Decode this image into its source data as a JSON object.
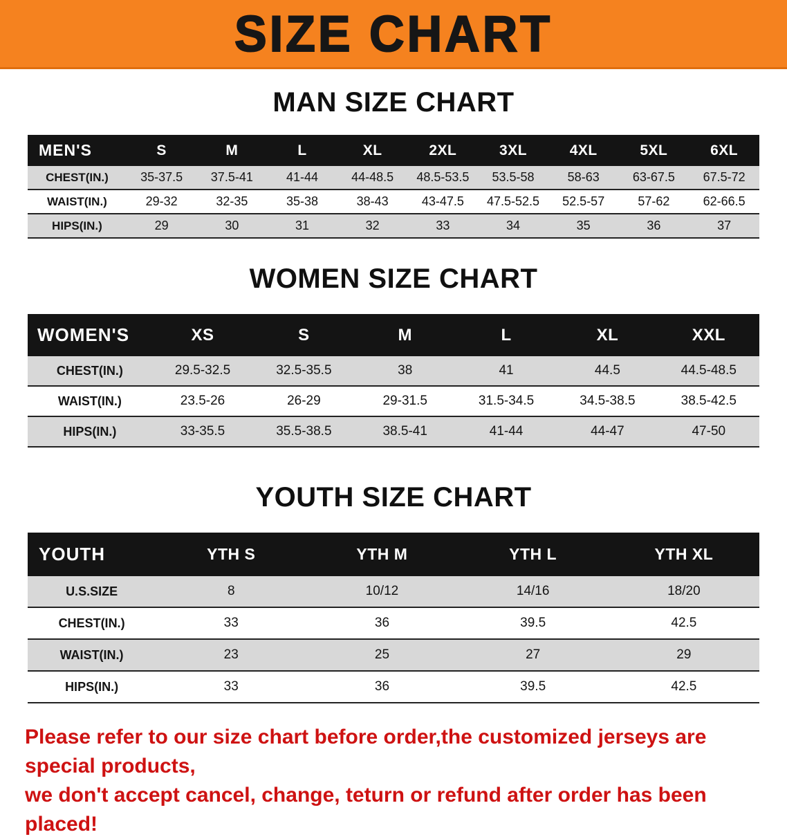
{
  "banner": {
    "title": "SIZE CHART"
  },
  "colors": {
    "banner_bg": "#F5821F",
    "banner_edge": "#E06E0D",
    "header_bg": "#141414",
    "row_alt": "#D8D8D8",
    "disclaimer": "#CE1212"
  },
  "men": {
    "heading": "MAN SIZE CHART",
    "table": {
      "header": [
        "MEN'S",
        "S",
        "M",
        "L",
        "XL",
        "2XL",
        "3XL",
        "4XL",
        "5XL",
        "6XL"
      ],
      "rows": [
        [
          "CHEST(IN.)",
          "35-37.5",
          "37.5-41",
          "41-44",
          "44-48.5",
          "48.5-53.5",
          "53.5-58",
          "58-63",
          "63-67.5",
          "67.5-72"
        ],
        [
          "WAIST(IN.)",
          "29-32",
          "32-35",
          "35-38",
          "38-43",
          "43-47.5",
          "47.5-52.5",
          "52.5-57",
          "57-62",
          "62-66.5"
        ],
        [
          "HIPS(IN.)",
          "29",
          "30",
          "31",
          "32",
          "33",
          "34",
          "35",
          "36",
          "37"
        ]
      ]
    }
  },
  "women": {
    "heading": "WOMEN SIZE CHART",
    "table": {
      "header": [
        "WOMEN'S",
        "XS",
        "S",
        "M",
        "L",
        "XL",
        "XXL"
      ],
      "rows": [
        [
          "CHEST(IN.)",
          "29.5-32.5",
          "32.5-35.5",
          "38",
          "41",
          "44.5",
          "44.5-48.5"
        ],
        [
          "WAIST(IN.)",
          "23.5-26",
          "26-29",
          "29-31.5",
          "31.5-34.5",
          "34.5-38.5",
          "38.5-42.5"
        ],
        [
          "HIPS(IN.)",
          "33-35.5",
          "35.5-38.5",
          "38.5-41",
          "41-44",
          "44-47",
          "47-50"
        ]
      ]
    }
  },
  "youth": {
    "heading": "YOUTH SIZE CHART",
    "table": {
      "header": [
        "YOUTH",
        "YTH S",
        "YTH M",
        "YTH L",
        "YTH XL"
      ],
      "rows": [
        [
          "U.S.SIZE",
          "8",
          "10/12",
          "14/16",
          "18/20"
        ],
        [
          "CHEST(IN.)",
          "33",
          "36",
          "39.5",
          "42.5"
        ],
        [
          "WAIST(IN.)",
          "23",
          "25",
          "27",
          "29"
        ],
        [
          "HIPS(IN.)",
          "33",
          "36",
          "39.5",
          "42.5"
        ]
      ]
    }
  },
  "disclaimer": {
    "line1": "Please refer to our size chart before order,the customized jerseys are special products,",
    "line2": "we don't accept cancel, change, teturn or refund after order has been placed!"
  }
}
